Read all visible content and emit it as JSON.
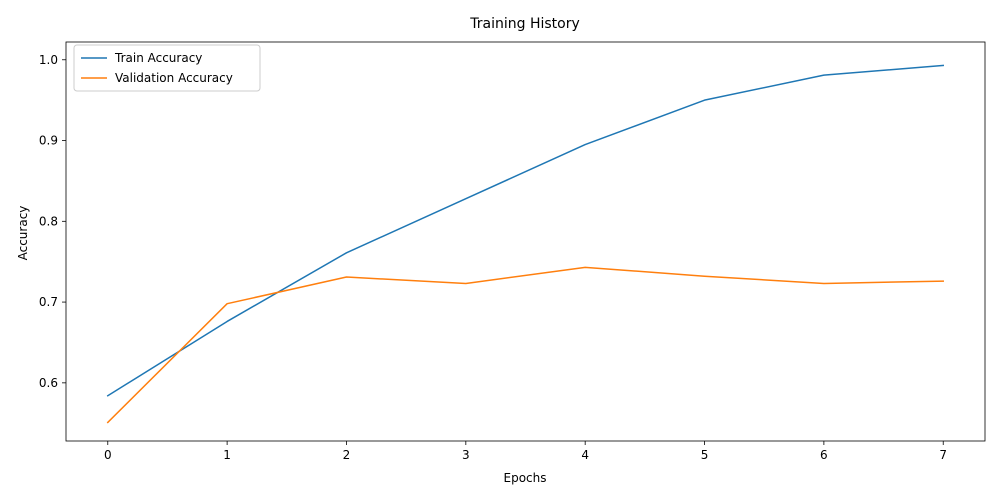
{
  "chart_data": {
    "type": "line",
    "title": "Training History",
    "xlabel": "Epochs",
    "ylabel": "Accuracy",
    "x": [
      0,
      1,
      2,
      3,
      4,
      5,
      6,
      7
    ],
    "xlim": [
      -0.35,
      7.35
    ],
    "ylim": [
      0.528,
      1.022
    ],
    "x_ticks": [
      0,
      1,
      2,
      3,
      4,
      5,
      6,
      7
    ],
    "y_ticks": [
      0.6,
      0.7,
      0.8,
      0.9,
      1.0
    ],
    "y_tick_labels": [
      "0.6",
      "0.7",
      "0.8",
      "0.9",
      "1.0"
    ],
    "grid": false,
    "legend_position": "upper-left",
    "series": [
      {
        "name": "Train Accuracy",
        "color": "#1f77b4",
        "values": [
          0.584,
          0.676,
          0.761,
          0.828,
          0.895,
          0.95,
          0.981,
          0.993
        ]
      },
      {
        "name": "Validation Accuracy",
        "color": "#ff7f0e",
        "values": [
          0.551,
          0.698,
          0.731,
          0.723,
          0.743,
          0.732,
          0.723,
          0.726
        ]
      }
    ]
  }
}
